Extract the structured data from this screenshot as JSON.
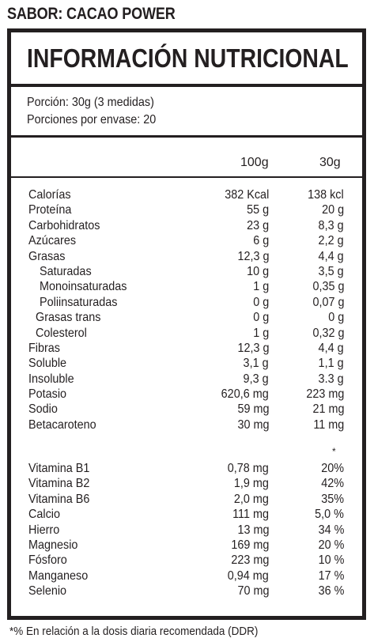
{
  "flavor": "SABOR: CACAO POWER",
  "title": "INFORMACIÓN NUTRICIONAL",
  "serving": {
    "portion": "Porción: 30g (3 medidas)",
    "per_container": "Porciones por envase: 20"
  },
  "columns": {
    "col1": "100g",
    "col2": "30g"
  },
  "nutrients": [
    {
      "label": "Calorías",
      "indent": 0,
      "v100": "382 Kcal",
      "v30": "138 kcl"
    },
    {
      "label": "Proteína",
      "indent": 0,
      "v100": "55 g",
      "v30": "20 g"
    },
    {
      "label": "Carbohidratos",
      "indent": 0,
      "v100": "23 g",
      "v30": "8,3 g"
    },
    {
      "label": "Azúcares",
      "indent": 0,
      "v100": "6 g",
      "v30": "2,2 g"
    },
    {
      "label": "Grasas",
      "indent": 0,
      "v100": "12,3 g",
      "v30": "4,4 g"
    },
    {
      "label": "Saturadas",
      "indent": 2,
      "v100": "10 g",
      "v30": "3,5 g"
    },
    {
      "label": "Monoinsaturadas",
      "indent": 2,
      "v100": "1 g",
      "v30": "0,35 g"
    },
    {
      "label": "Poliinsaturadas",
      "indent": 2,
      "v100": "0 g",
      "v30": "0,07 g"
    },
    {
      "label": "Grasas trans",
      "indent": 1,
      "v100": "0 g",
      "v30": "0 g"
    },
    {
      "label": "Colesterol",
      "indent": 1,
      "v100": "1 g",
      "v30": "0,32 g"
    },
    {
      "label": "Fibras",
      "indent": 0,
      "v100": "12,3 g",
      "v30": "4,4 g"
    },
    {
      "label": "Soluble",
      "indent": 0,
      "v100": "3,1 g",
      "v30": "1,1 g"
    },
    {
      "label": "Insoluble",
      "indent": 0,
      "v100": "9,3 g",
      "v30": "3.3 g"
    },
    {
      "label": "Potasio",
      "indent": 0,
      "v100": "620,6 mg",
      "v30": "223 mg"
    },
    {
      "label": "Sodio",
      "indent": 0,
      "v100": "59 mg",
      "v30": "21 mg"
    },
    {
      "label": "Betacaroteno",
      "indent": 0,
      "v100": "30 mg",
      "v30": "11 mg"
    }
  ],
  "star_mark": "*",
  "vitamins": [
    {
      "label": "Vitamina B1",
      "v100": "0,78 mg",
      "v30": "20%"
    },
    {
      "label": "Vitamina B2",
      "v100": "1,9 mg",
      "v30": "42%"
    },
    {
      "label": "Vitamina B6",
      "v100": "2,0 mg",
      "v30": "35%"
    },
    {
      "label": "Calcio",
      "v100": "111 mg",
      "v30": "5,0 %"
    },
    {
      "label": "Hierro",
      "v100": "13 mg",
      "v30": "34 %"
    },
    {
      "label": "Magnesio",
      "v100": "169 mg",
      "v30": "20 %"
    },
    {
      "label": "Fósforo",
      "v100": "223 mg",
      "v30": "10 %"
    },
    {
      "label": "Manganeso",
      "v100": "0,94 mg",
      "v30": "17 %"
    },
    {
      "label": "Selenio",
      "v100": "70 mg",
      "v30": "36 %"
    }
  ],
  "footnote": "*% En relación a la dosis diaria recomendada (DDR)"
}
